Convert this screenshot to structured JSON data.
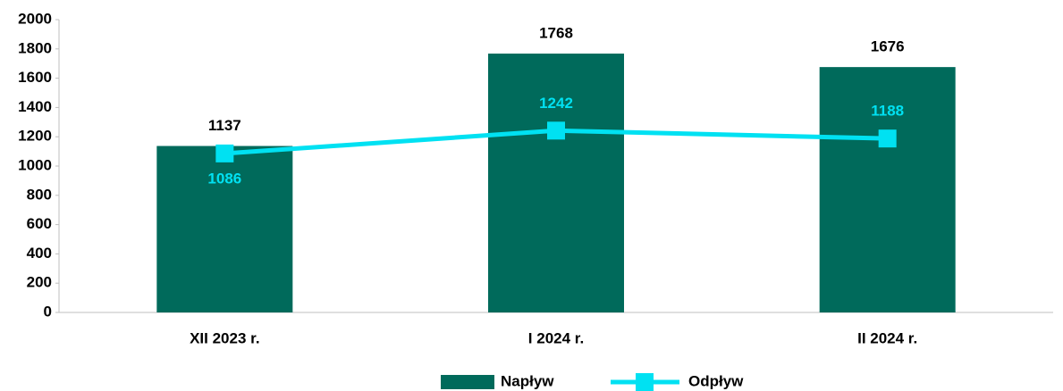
{
  "chart_data": {
    "type": "bar",
    "categories": [
      "XII 2023 r.",
      "I 2024 r.",
      "II 2024 r."
    ],
    "series": [
      {
        "name": "Napływ",
        "type": "bar",
        "color": "#006a5b",
        "values": [
          1137,
          1768,
          1676
        ]
      },
      {
        "name": "Odpływ",
        "type": "line",
        "color": "#00e1f2",
        "values": [
          1086,
          1242,
          1188
        ]
      }
    ],
    "ylim": [
      0,
      2000
    ],
    "yticks": [
      0,
      200,
      400,
      600,
      800,
      1000,
      1200,
      1400,
      1600,
      1800,
      2000
    ],
    "grid": false,
    "legend": "bottom"
  }
}
